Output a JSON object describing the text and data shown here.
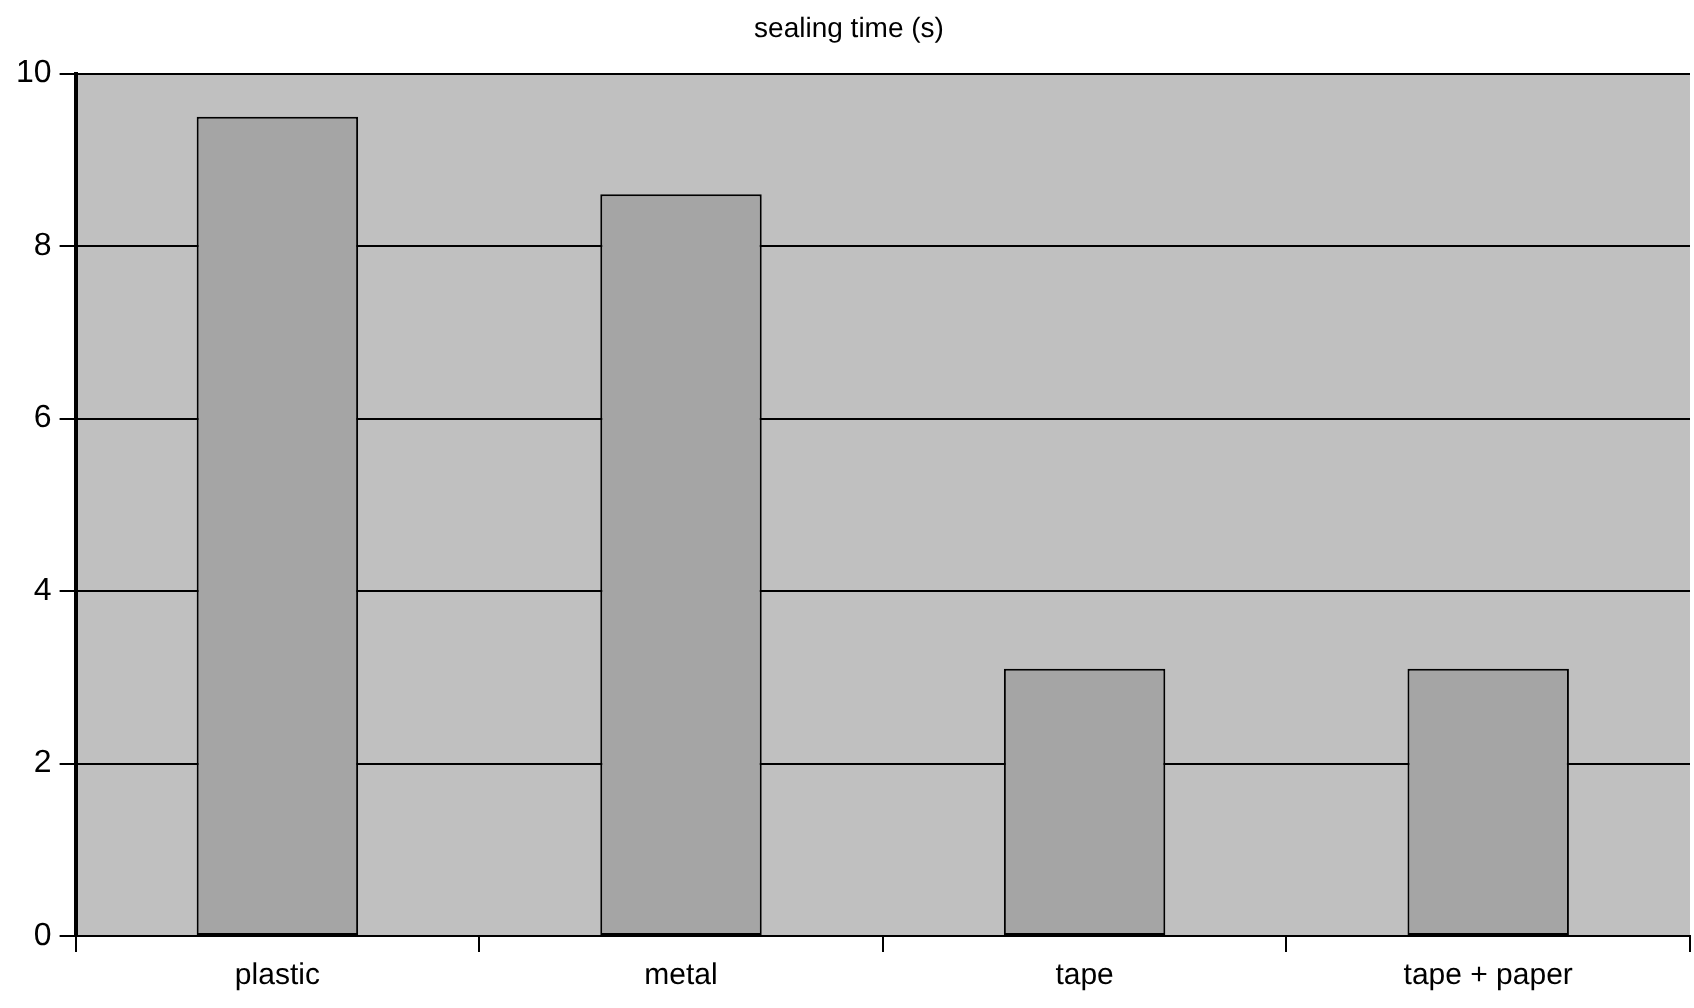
{
  "chart_data": {
    "type": "bar",
    "title": "sealing time (s)",
    "categories": [
      "plastic",
      "metal",
      "tape",
      "tape + paper"
    ],
    "values": [
      9.5,
      8.6,
      3.1,
      3.1
    ],
    "color": "#a5a5a5",
    "ylim": [
      0,
      10
    ],
    "yticks": [
      0,
      2,
      4,
      6,
      8,
      10
    ],
    "grid": "y",
    "legend": false
  }
}
